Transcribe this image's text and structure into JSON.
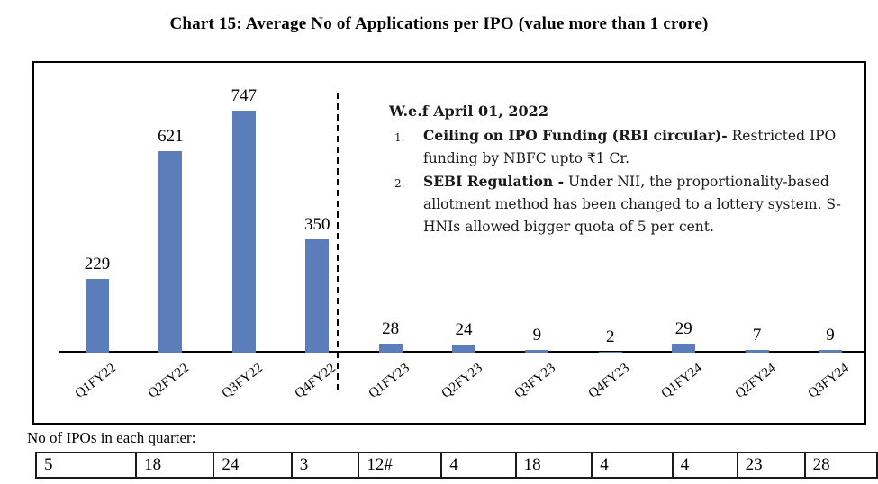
{
  "title": "Chart 15: Average No of Applications per IPO (value more than 1 crore)",
  "chart_data": {
    "type": "bar",
    "categories": [
      "Q1FY22",
      "Q2FY22",
      "Q3FY22",
      "Q4FY22",
      "Q1FY23",
      "Q2FY23",
      "Q3FY23",
      "Q4FY23",
      "Q1FY24",
      "Q2FY24",
      "Q3FY24"
    ],
    "values": [
      229,
      621,
      747,
      350,
      28,
      24,
      9,
      2,
      29,
      7,
      9
    ],
    "title": "Chart 15: Average No of Applications per IPO (value more than 1 crore)",
    "xlabel": "",
    "ylabel": "",
    "ylim": [
      0,
      800
    ],
    "grid": false,
    "legend": "none",
    "bar_color": "#5b7ebb",
    "data_labels": true,
    "divider_dashed_line_after_category": "Q4FY22"
  },
  "annotation": {
    "heading": "W.e.f April 01, 2022",
    "items": [
      {
        "number": "1.",
        "bold": "Ceiling on IPO Funding (RBI circular)-",
        "text": " Restricted IPO funding by NBFC upto ₹1 Cr."
      },
      {
        "number": "2.",
        "bold": "SEBI Regulation -",
        "text": " Under NII, the proportionality-based allotment method has been changed to a lottery system. S-HNIs allowed bigger quota of 5 per cent."
      }
    ]
  },
  "ipo_table": {
    "label": "No of IPOs in each quarter:",
    "values": [
      "5",
      "18",
      "24",
      "3",
      "12#",
      "4",
      "18",
      "4",
      "4",
      "23",
      "28"
    ]
  }
}
